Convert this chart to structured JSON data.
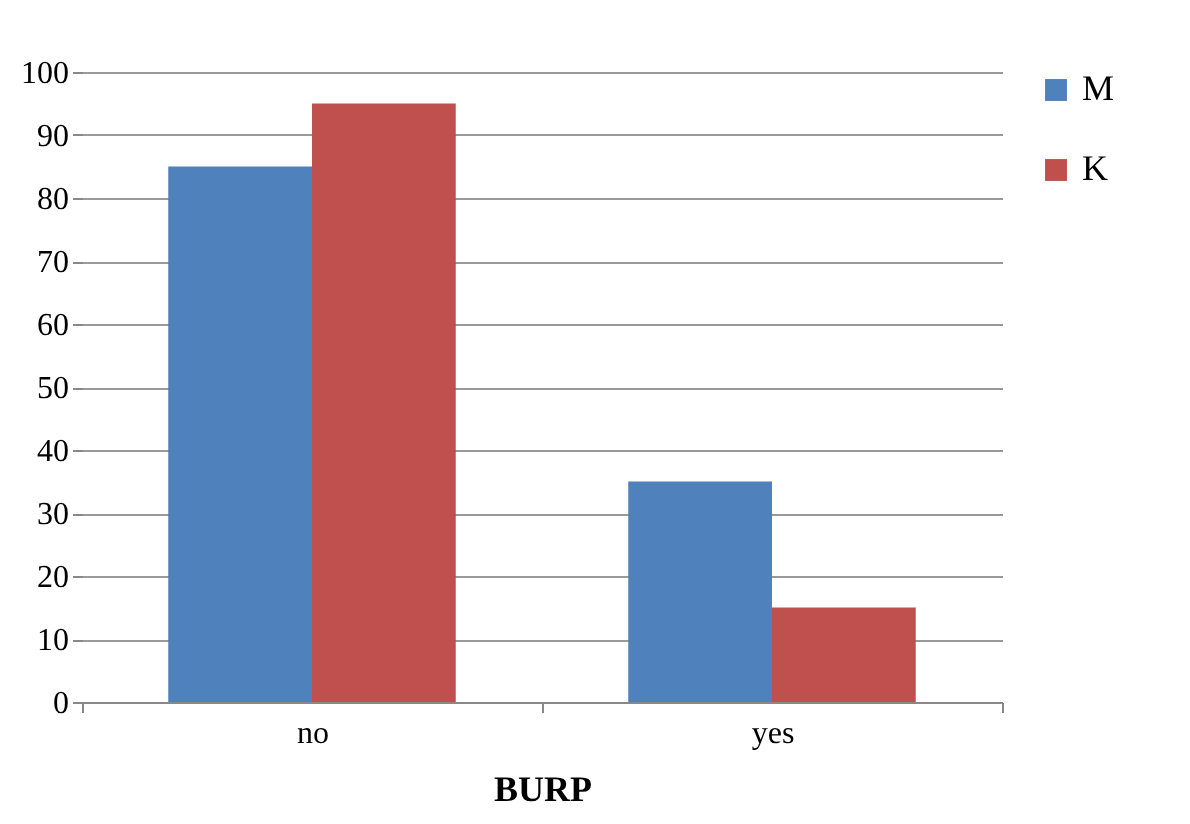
{
  "chart_data": {
    "type": "bar",
    "xlabel": "BURP",
    "categories": [
      "no",
      "yes"
    ],
    "series": [
      {
        "name": "M",
        "color": "#4f81bd",
        "values": [
          85,
          35
        ]
      },
      {
        "name": "K",
        "color": "#c0504d",
        "values": [
          95,
          15
        ]
      }
    ],
    "ylim": [
      0,
      100
    ],
    "yticks": [
      0,
      10,
      20,
      30,
      40,
      50,
      60,
      70,
      80,
      90,
      100
    ],
    "grid": "y",
    "legend": "right"
  }
}
